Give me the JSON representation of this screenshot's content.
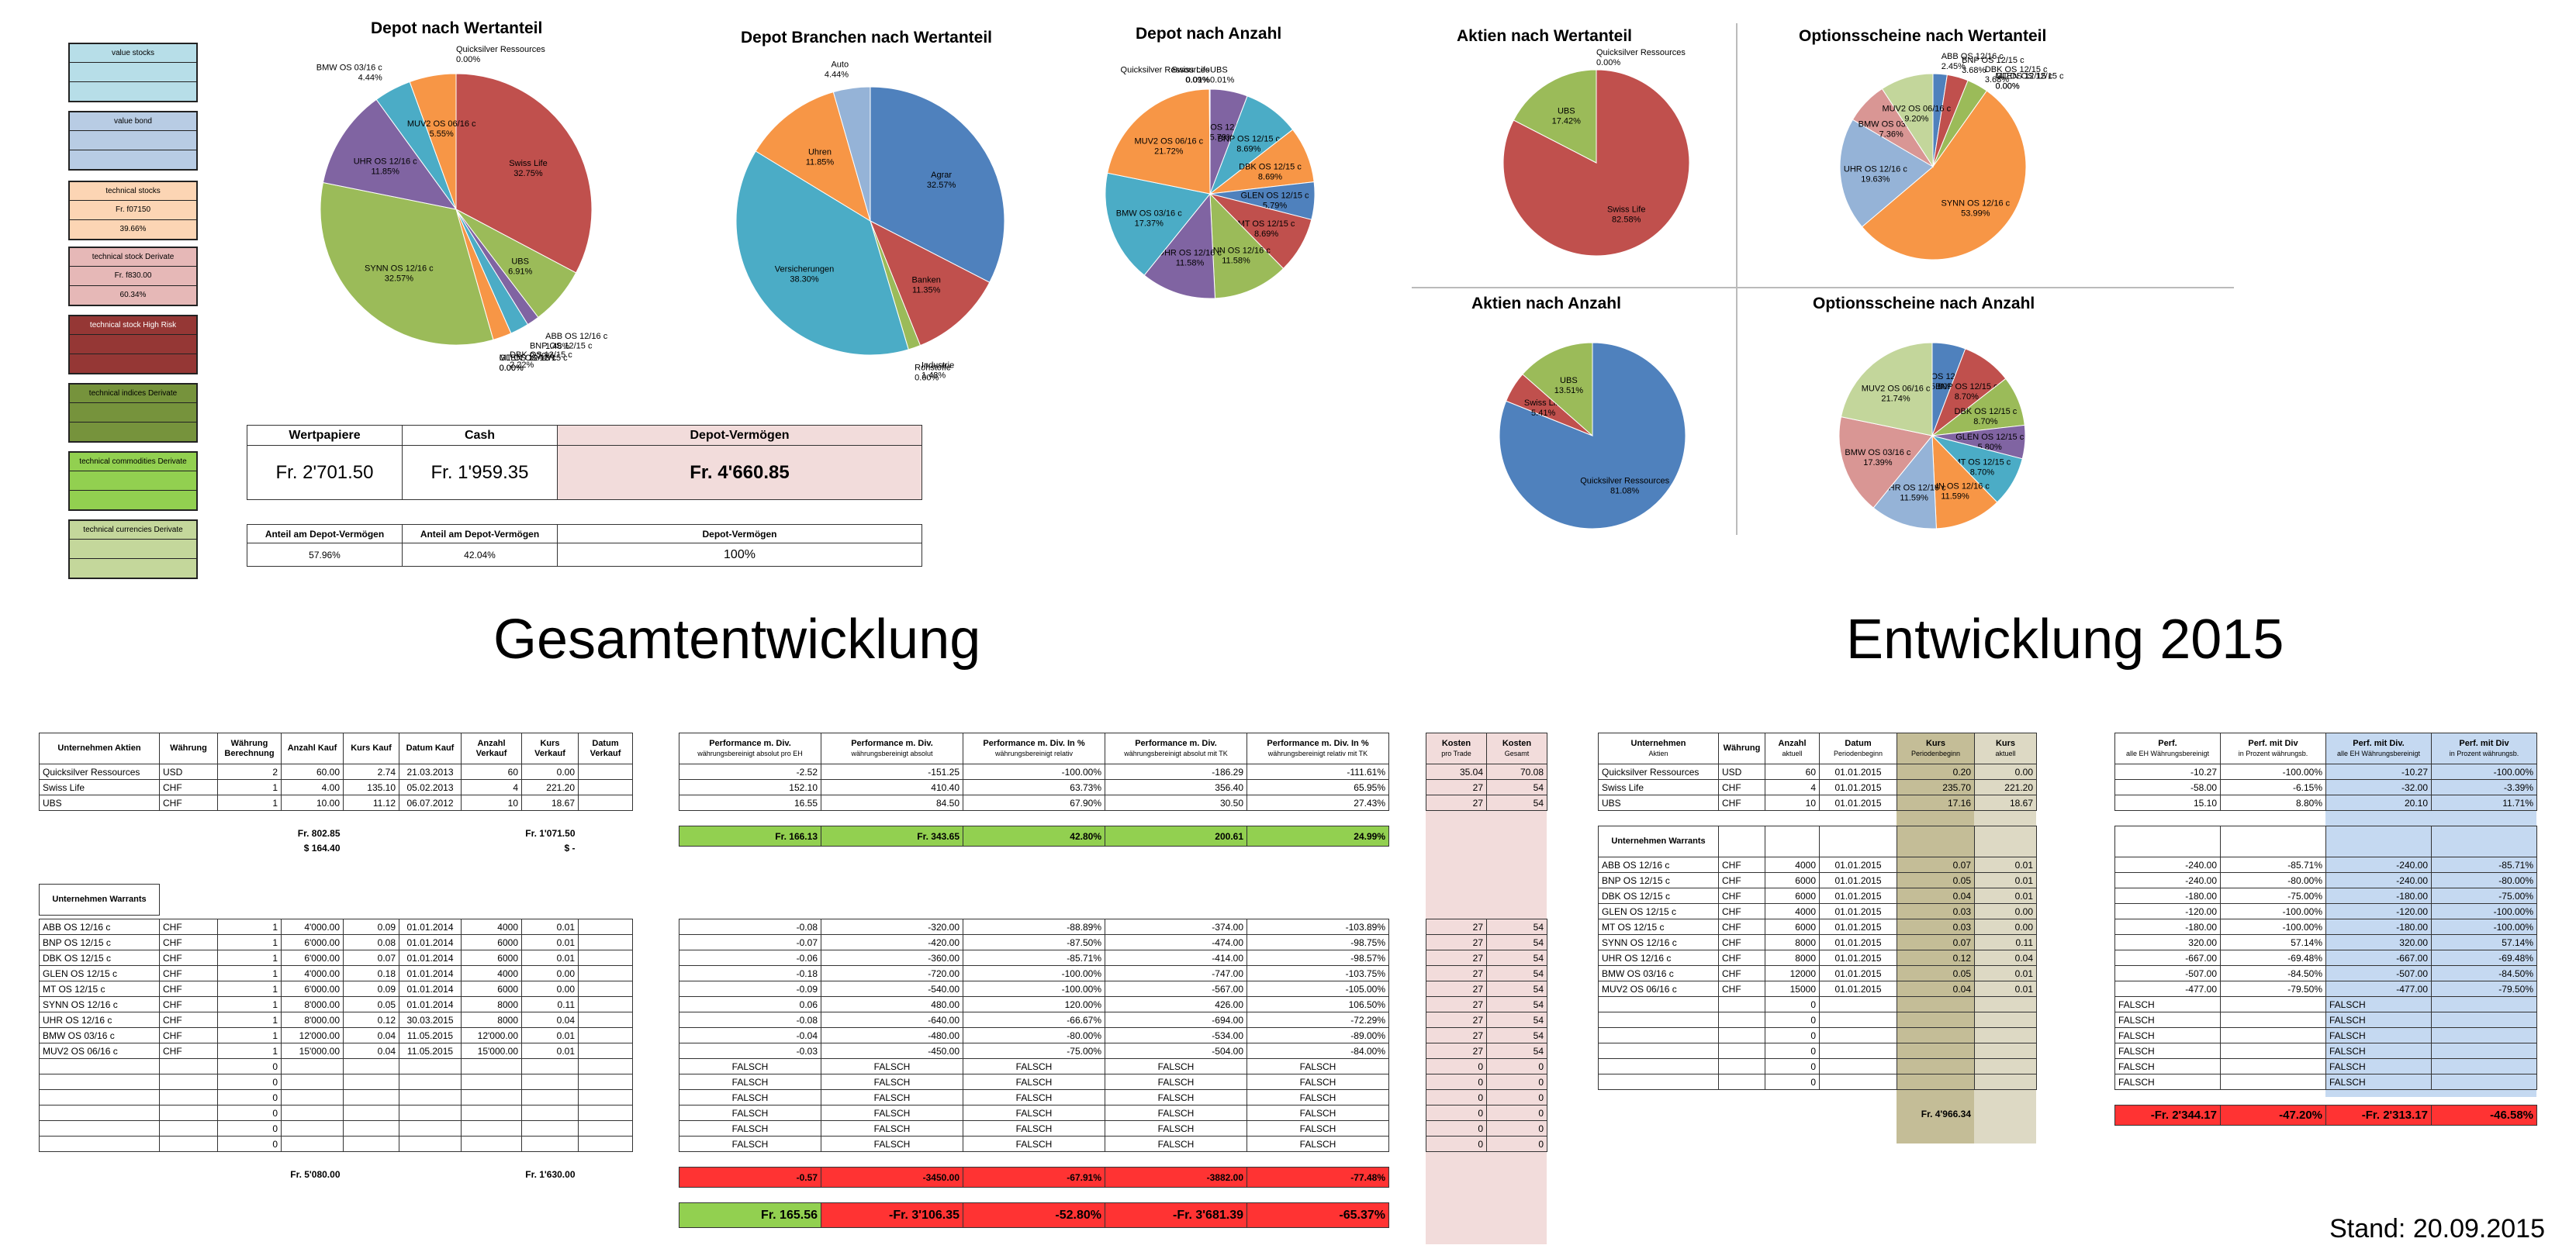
{
  "legend": [
    {
      "title": "value stocks",
      "rows": [
        "",
        ""
      ],
      "color": "#b7dee8"
    },
    {
      "title": "value bond",
      "rows": [
        "",
        ""
      ],
      "color": "#b8cce4"
    },
    {
      "title": "technical stocks",
      "rows": [
        "Fr. f07150",
        "39.66%"
      ],
      "color": "#fcd5b4"
    },
    {
      "title": "technical stock Derivate",
      "rows": [
        "Fr. f830.00",
        "60.34%"
      ],
      "color": "#e6b8b7"
    },
    {
      "title": "technical stock High Risk",
      "rows": [
        "",
        ""
      ],
      "color": "#953735"
    },
    {
      "title": "technical indices Derivate",
      "rows": [
        "",
        ""
      ],
      "color": "#76933c"
    },
    {
      "title": "technical commodities Derivate",
      "rows": [
        "",
        ""
      ],
      "color": "#92d050"
    },
    {
      "title": "technical currencies Derivate",
      "rows": [
        "",
        ""
      ],
      "color": "#c4d79b"
    }
  ],
  "charts": {
    "depot_wert": {
      "title": "Depot nach Wertanteil"
    },
    "branchen": {
      "title": "Depot Branchen nach Wertanteil"
    },
    "depot_anzahl": {
      "title": "Depot nach Anzahl"
    },
    "aktien_wert": {
      "title": "Aktien nach Wertanteil"
    },
    "os_wert": {
      "title": "Optionsscheine nach Wertanteil"
    },
    "aktien_anzahl": {
      "title": "Aktien nach Anzahl"
    },
    "os_anzahl": {
      "title": "Optionsscheine nach Anzahl"
    }
  },
  "chart_data": [
    {
      "type": "pie",
      "title": "Depot nach Wertanteil",
      "labels": [
        "Swiss Life",
        "UBS",
        "ABB OS 12/16 c",
        "BNP OS 12/15 c",
        "DBK OS 12/15 c",
        "GLEN OS 12/15 c",
        "MT OS 12/15 c",
        "SYNN OS 12/16 c",
        "UHR OS 12/16 c",
        "BMW OS 03/16 c",
        "MUV2 OS 06/16 c",
        "Quicksilver Ressources"
      ],
      "values": [
        32.75,
        6.91,
        1.48,
        2.22,
        2.22,
        0.0,
        0.0,
        32.57,
        11.85,
        4.44,
        5.55,
        0.0
      ],
      "colors": [
        "#c0504d",
        "#9bbb59",
        "#8064a2",
        "#4bacc6",
        "#f79646",
        "#2c4d75",
        "#772c2a",
        "#9bbb59",
        "#8064a2",
        "#4bacc6",
        "#f79646",
        "#4f81bd"
      ]
    },
    {
      "type": "pie",
      "title": "Depot Branchen nach Wertanteil",
      "labels": [
        "Agrar",
        "Banken",
        "Industrie",
        "Rohstoffe",
        "Versicherungen",
        "Uhren",
        "Auto"
      ],
      "values": [
        32.57,
        11.35,
        1.48,
        0.0,
        38.3,
        11.85,
        4.44
      ],
      "colors": [
        "#4f81bd",
        "#c0504d",
        "#9bbb59",
        "#8064a2",
        "#4bacc6",
        "#f79646",
        "#95b3d7"
      ]
    },
    {
      "type": "pie",
      "title": "Depot nach Anzahl",
      "labels": [
        "UBS",
        "ABB OS 12/16 c",
        "BNP OS 12/15 c",
        "DBK OS 12/15 c",
        "GLEN OS 12/15 c",
        "MT OS 12/15 c",
        "SYNN OS 12/16 c",
        "UHR OS 12/16 c",
        "BMW OS 03/16 c",
        "MUV2 OS 06/16 c",
        "Quicksilver Ressources",
        "Swiss Life"
      ],
      "values": [
        0.01,
        5.79,
        8.69,
        8.69,
        5.79,
        8.69,
        11.58,
        11.58,
        17.37,
        21.72,
        0.09,
        0.01
      ],
      "colors": [
        "#9bbb59",
        "#8064a2",
        "#4bacc6",
        "#f79646",
        "#4f81bd",
        "#c0504d",
        "#9bbb59",
        "#8064a2",
        "#4bacc6",
        "#f79646",
        "#4f81bd",
        "#c0504d"
      ]
    },
    {
      "type": "pie",
      "title": "Aktien nach Wertanteil",
      "labels": [
        "Quicksilver Ressources",
        "Swiss Life",
        "UBS"
      ],
      "values": [
        0.0,
        82.58,
        17.42
      ],
      "colors": [
        "#4f81bd",
        "#c0504d",
        "#9bbb59"
      ]
    },
    {
      "type": "pie",
      "title": "Optionsscheine nach Wertanteil",
      "labels": [
        "ABB OS 12/16 c",
        "BNP OS 12/15 c",
        "DBK OS 12/15 c",
        "GLEN OS 12/15 c",
        "MT OS 12/15 c",
        "SYNN OS 12/16 c",
        "UHR OS 12/16 c",
        "BMW OS 03/16 c",
        "MUV2 OS 06/16 c"
      ],
      "values": [
        2.45,
        3.68,
        3.68,
        0.0,
        0.0,
        53.99,
        19.63,
        7.36,
        9.2
      ],
      "colors": [
        "#4f81bd",
        "#c0504d",
        "#9bbb59",
        "#8064a2",
        "#4bacc6",
        "#f79646",
        "#95b3d7",
        "#d99694",
        "#c3d69b"
      ]
    },
    {
      "type": "pie",
      "title": "Aktien nach Anzahl",
      "labels": [
        "Quicksilver Ressources",
        "Swiss Life",
        "UBS"
      ],
      "values": [
        81.08,
        5.41,
        13.51
      ],
      "colors": [
        "#4f81bd",
        "#c0504d",
        "#9bbb59"
      ]
    },
    {
      "type": "pie",
      "title": "Optionsscheine nach Anzahl",
      "labels": [
        "ABB OS 12/16 c",
        "BNP OS 12/15 c",
        "DBK OS 12/15 c",
        "GLEN OS 12/15 c",
        "MT OS 12/15 c",
        "SYNN OS 12/16 c",
        "UHR OS 12/16 c",
        "BMW OS 03/16 c",
        "MUV2 OS 06/16 c"
      ],
      "values": [
        5.8,
        8.7,
        8.7,
        5.8,
        8.7,
        11.59,
        11.59,
        17.39,
        21.74
      ],
      "colors": [
        "#4f81bd",
        "#c0504d",
        "#9bbb59",
        "#8064a2",
        "#4bacc6",
        "#f79646",
        "#95b3d7",
        "#d99694",
        "#c3d69b"
      ]
    }
  ],
  "summary": {
    "headers": [
      "Wertpapiere",
      "Cash",
      "Depot-Vermögen"
    ],
    "values": [
      "Fr. 2'701.50",
      "Fr. 1'959.35",
      "Fr. 4'660.85"
    ],
    "sub_headers": [
      "Anteil am Depot-Vermögen",
      "Anteil am Depot-Vermögen",
      "Depot-Vermögen"
    ],
    "sub_values": [
      "57.96%",
      "42.04%",
      "100%"
    ]
  },
  "titles": {
    "gesamt": "Gesamtentwicklung",
    "e2015": "Entwicklung 2015",
    "stand": "Stand: 20.09.2015"
  },
  "gesamt": {
    "aktien_headers": [
      "Unternehmen Aktien",
      "Währung",
      "Währung Berechnung",
      "Anzahl Kauf",
      "Kurs Kauf",
      "Datum Kauf",
      "Anzahl Verkauf",
      "Kurs Verkauf",
      "Datum Verkauf"
    ],
    "aktien_rows": [
      [
        "Quicksilver Ressources",
        "USD",
        "2",
        "60.00",
        "2.74",
        "21.03.2013",
        "60",
        "0.00",
        ""
      ],
      [
        "Swiss Life",
        "CHF",
        "1",
        "4.00",
        "135.10",
        "05.02.2013",
        "4",
        "221.20",
        ""
      ],
      [
        "UBS",
        "CHF",
        "1",
        "10.00",
        "11.12",
        "06.07.2012",
        "10",
        "18.67",
        ""
      ]
    ],
    "aktien_tot": [
      "Fr. 802.85",
      "$ 164.40",
      "Fr. 1'071.50",
      "$ -"
    ],
    "warrants_header": "Unternehmen Warrants",
    "warrant_rows": [
      [
        "ABB OS 12/16 c",
        "CHF",
        "1",
        "4'000.00",
        "0.09",
        "01.01.2014",
        "4000",
        "0.01",
        ""
      ],
      [
        "BNP OS 12/15 c",
        "CHF",
        "1",
        "6'000.00",
        "0.08",
        "01.01.2014",
        "6000",
        "0.01",
        ""
      ],
      [
        "DBK OS 12/15 c",
        "CHF",
        "1",
        "6'000.00",
        "0.07",
        "01.01.2014",
        "6000",
        "0.01",
        ""
      ],
      [
        "GLEN OS 12/15 c",
        "CHF",
        "1",
        "4'000.00",
        "0.18",
        "01.01.2014",
        "4000",
        "0.00",
        ""
      ],
      [
        "MT OS 12/15 c",
        "CHF",
        "1",
        "6'000.00",
        "0.09",
        "01.01.2014",
        "6000",
        "0.00",
        ""
      ],
      [
        "SYNN OS 12/16 c",
        "CHF",
        "1",
        "8'000.00",
        "0.05",
        "01.01.2014",
        "8000",
        "0.11",
        ""
      ],
      [
        "UHR OS 12/16 c",
        "CHF",
        "1",
        "8'000.00",
        "0.12",
        "30.03.2015",
        "8000",
        "0.04",
        ""
      ],
      [
        "BMW OS 03/16 c",
        "CHF",
        "1",
        "12'000.00",
        "0.04",
        "11.05.2015",
        "12'000.00",
        "0.01",
        ""
      ],
      [
        "MUV2 OS 06/16 c",
        "CHF",
        "1",
        "15'000.00",
        "0.04",
        "11.05.2015",
        "15'000.00",
        "0.01",
        ""
      ],
      [
        "",
        "",
        "0",
        "",
        "",
        "",
        "",
        "",
        ""
      ],
      [
        "",
        "",
        "0",
        "",
        "",
        "",
        "",
        "",
        ""
      ],
      [
        "",
        "",
        "0",
        "",
        "",
        "",
        "",
        "",
        ""
      ],
      [
        "",
        "",
        "0",
        "",
        "",
        "",
        "",
        "",
        ""
      ],
      [
        "",
        "",
        "0",
        "",
        "",
        "",
        "",
        "",
        ""
      ],
      [
        "",
        "",
        "0",
        "",
        "",
        "",
        "",
        "",
        ""
      ]
    ],
    "warrant_tot": [
      "Fr. 5'080.00",
      "Fr. 1'630.00"
    ],
    "perf_headers": [
      [
        "Performance m. Div.",
        "währungsbereinigt absolut pro EH"
      ],
      [
        "Performance m. Div.",
        "währungsbereinigt absolut"
      ],
      [
        "Performance m. Div. In %",
        "währungsbereinigt relativ"
      ],
      [
        "Performance m. Div.",
        "währungsbereinigt absolut mit TK"
      ],
      [
        "Performance m. Div. In %",
        "währungsbereinigt relativ mit TK"
      ]
    ],
    "perf_aktien": [
      [
        "-2.52",
        "-151.25",
        "-100.00%",
        "-186.29",
        "-111.61%"
      ],
      [
        "152.10",
        "410.40",
        "63.73%",
        "356.40",
        "65.95%"
      ],
      [
        "16.55",
        "84.50",
        "67.90%",
        "30.50",
        "27.43%"
      ]
    ],
    "perf_aktien_tot": [
      "Fr. 166.13",
      "Fr. 343.65",
      "42.80%",
      "200.61",
      "24.99%"
    ],
    "perf_warrants": [
      [
        "-0.08",
        "-320.00",
        "-88.89%",
        "-374.00",
        "-103.89%"
      ],
      [
        "-0.07",
        "-420.00",
        "-87.50%",
        "-474.00",
        "-98.75%"
      ],
      [
        "-0.06",
        "-360.00",
        "-85.71%",
        "-414.00",
        "-98.57%"
      ],
      [
        "-0.18",
        "-720.00",
        "-100.00%",
        "-747.00",
        "-103.75%"
      ],
      [
        "-0.09",
        "-540.00",
        "-100.00%",
        "-567.00",
        "-105.00%"
      ],
      [
        "0.06",
        "480.00",
        "120.00%",
        "426.00",
        "106.50%"
      ],
      [
        "-0.08",
        "-640.00",
        "-66.67%",
        "-694.00",
        "-72.29%"
      ],
      [
        "-0.04",
        "-480.00",
        "-80.00%",
        "-534.00",
        "-89.00%"
      ],
      [
        "-0.03",
        "-450.00",
        "-75.00%",
        "-504.00",
        "-84.00%"
      ],
      [
        "FALSCH",
        "FALSCH",
        "FALSCH",
        "FALSCH",
        "FALSCH"
      ],
      [
        "FALSCH",
        "FALSCH",
        "FALSCH",
        "FALSCH",
        "FALSCH"
      ],
      [
        "FALSCH",
        "FALSCH",
        "FALSCH",
        "FALSCH",
        "FALSCH"
      ],
      [
        "FALSCH",
        "FALSCH",
        "FALSCH",
        "FALSCH",
        "FALSCH"
      ],
      [
        "FALSCH",
        "FALSCH",
        "FALSCH",
        "FALSCH",
        "FALSCH"
      ],
      [
        "FALSCH",
        "FALSCH",
        "FALSCH",
        "FALSCH",
        "FALSCH"
      ]
    ],
    "perf_warrants_tot": [
      "-0.57",
      "-3450.00",
      "-67.91%",
      "-3882.00",
      "-77.48%"
    ],
    "perf_grand": [
      "Fr. 165.56",
      "-Fr. 3'106.35",
      "-52.80%",
      "-Fr. 3'681.39",
      "-65.37%"
    ],
    "kosten_headers": [
      [
        "Kosten",
        "pro Trade"
      ],
      [
        "Kosten",
        "Gesamt"
      ]
    ],
    "kosten_aktien": [
      [
        "35.04",
        "70.08"
      ],
      [
        "27",
        "54"
      ],
      [
        "27",
        "54"
      ]
    ],
    "kosten_warrants": [
      [
        "27",
        "54"
      ],
      [
        "27",
        "54"
      ],
      [
        "27",
        "54"
      ],
      [
        "27",
        "54"
      ],
      [
        "27",
        "54"
      ],
      [
        "27",
        "54"
      ],
      [
        "27",
        "54"
      ],
      [
        "27",
        "54"
      ],
      [
        "27",
        "54"
      ],
      [
        "0",
        "0"
      ],
      [
        "0",
        "0"
      ],
      [
        "0",
        "0"
      ],
      [
        "0",
        "0"
      ],
      [
        "0",
        "0"
      ],
      [
        "0",
        "0"
      ]
    ]
  },
  "e2015": {
    "aktien_headers": [
      [
        "Unternehmen",
        "Aktien"
      ],
      [
        "Währung",
        ""
      ],
      [
        "Anzahl",
        "aktuell"
      ],
      [
        "Datum",
        "Periodenbeginn"
      ],
      [
        "Kurs",
        "Periodenbeginn"
      ],
      [
        "Kurs",
        "aktuell"
      ]
    ],
    "aktien_rows": [
      [
        "Quicksilver Ressources",
        "USD",
        "60",
        "01.01.2015",
        "0.20",
        "0.00"
      ],
      [
        "Swiss Life",
        "CHF",
        "4",
        "01.01.2015",
        "235.70",
        "221.20"
      ],
      [
        "UBS",
        "CHF",
        "10",
        "01.01.2015",
        "17.16",
        "18.67"
      ]
    ],
    "warrants_header": "Unternehmen Warrants",
    "warrant_rows": [
      [
        "ABB OS 12/16 c",
        "CHF",
        "4000",
        "01.01.2015",
        "0.07",
        "0.01"
      ],
      [
        "BNP OS 12/15 c",
        "CHF",
        "6000",
        "01.01.2015",
        "0.05",
        "0.01"
      ],
      [
        "DBK OS 12/15 c",
        "CHF",
        "6000",
        "01.01.2015",
        "0.04",
        "0.01"
      ],
      [
        "GLEN OS 12/15 c",
        "CHF",
        "4000",
        "01.01.2015",
        "0.03",
        "0.00"
      ],
      [
        "MT OS 12/15 c",
        "CHF",
        "6000",
        "01.01.2015",
        "0.03",
        "0.00"
      ],
      [
        "SYNN OS 12/16 c",
        "CHF",
        "8000",
        "01.01.2015",
        "0.07",
        "0.11"
      ],
      [
        "UHR OS 12/16 c",
        "CHF",
        "8000",
        "01.01.2015",
        "0.12",
        "0.04"
      ],
      [
        "BMW OS 03/16 c",
        "CHF",
        "12000",
        "01.01.2015",
        "0.05",
        "0.01"
      ],
      [
        "MUV2 OS 06/16 c",
        "CHF",
        "15000",
        "01.01.2015",
        "0.04",
        "0.01"
      ],
      [
        "",
        "",
        "0",
        "",
        "",
        ""
      ],
      [
        "",
        "",
        "0",
        "",
        "",
        ""
      ],
      [
        "",
        "",
        "0",
        "",
        "",
        ""
      ],
      [
        "",
        "",
        "0",
        "",
        "",
        ""
      ],
      [
        "",
        "",
        "0",
        "",
        "",
        ""
      ],
      [
        "",
        "",
        "0",
        "",
        "",
        ""
      ]
    ],
    "kurs_tot": "Fr. 4'966.34",
    "perf_headers": [
      [
        "Perf.",
        "alle EH Währungsbereinigt"
      ],
      [
        "Perf. mit Div",
        "in Prozent währungsb."
      ],
      [
        "Perf. mit Div.",
        "alle EH Währungsbereinigt"
      ],
      [
        "Perf. mit Div",
        "in Prozent währungsb."
      ]
    ],
    "perf_aktien": [
      [
        "-10.27",
        "-100.00%",
        "-10.27",
        "-100.00%"
      ],
      [
        "-58.00",
        "-6.15%",
        "-32.00",
        "-3.39%"
      ],
      [
        "15.10",
        "8.80%",
        "20.10",
        "11.71%"
      ]
    ],
    "perf_warrants": [
      [
        "-240.00",
        "-85.71%",
        "-240.00",
        "-85.71%"
      ],
      [
        "-240.00",
        "-80.00%",
        "-240.00",
        "-80.00%"
      ],
      [
        "-180.00",
        "-75.00%",
        "-180.00",
        "-75.00%"
      ],
      [
        "-120.00",
        "-100.00%",
        "-120.00",
        "-100.00%"
      ],
      [
        "-180.00",
        "-100.00%",
        "-180.00",
        "-100.00%"
      ],
      [
        "320.00",
        "57.14%",
        "320.00",
        "57.14%"
      ],
      [
        "-667.00",
        "-69.48%",
        "-667.00",
        "-69.48%"
      ],
      [
        "-507.00",
        "-84.50%",
        "-507.00",
        "-84.50%"
      ],
      [
        "-477.00",
        "-79.50%",
        "-477.00",
        "-79.50%"
      ],
      [
        "FALSCH",
        "",
        "FALSCH",
        ""
      ],
      [
        "FALSCH",
        "",
        "FALSCH",
        ""
      ],
      [
        "FALSCH",
        "",
        "FALSCH",
        ""
      ],
      [
        "FALSCH",
        "",
        "FALSCH",
        ""
      ],
      [
        "FALSCH",
        "",
        "FALSCH",
        ""
      ],
      [
        "FALSCH",
        "",
        "FALSCH",
        ""
      ]
    ],
    "perf_tot": [
      "-Fr. 2'344.17",
      "-47.20%",
      "-Fr. 2'313.17",
      "-46.58%"
    ]
  }
}
